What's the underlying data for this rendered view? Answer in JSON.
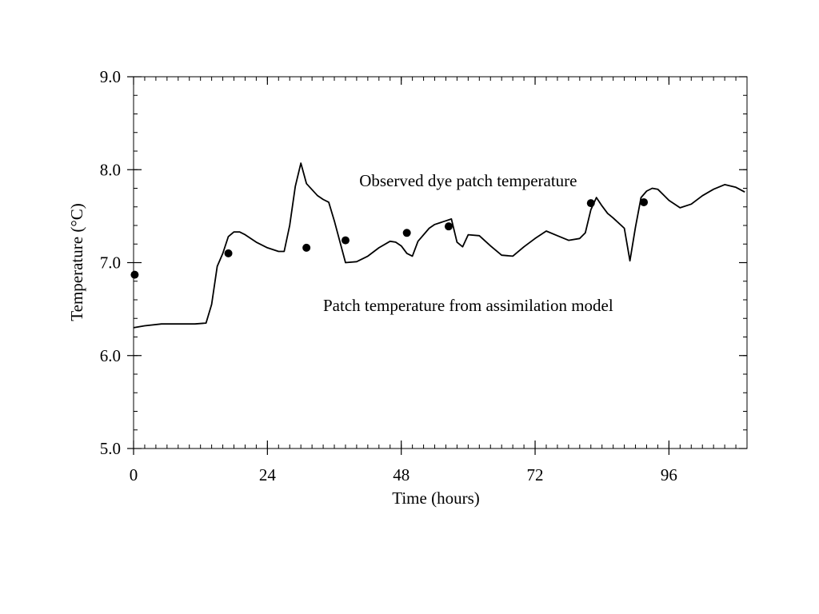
{
  "chart_data": {
    "type": "line",
    "xlabel": "Time (hours)",
    "ylabel": "Temperature (°C)",
    "xlim": [
      0,
      110
    ],
    "ylim": [
      5.0,
      9.0
    ],
    "x_ticks": [
      0,
      24,
      48,
      72,
      96
    ],
    "x_tick_labels": [
      "0",
      "24",
      "48",
      "72",
      "96"
    ],
    "y_ticks": [
      5.0,
      6.0,
      7.0,
      8.0,
      9.0
    ],
    "y_tick_labels": [
      "5.0",
      "6.0",
      "7.0",
      "8.0",
      "9.0"
    ],
    "x_minor_step": 2,
    "y_minor_step": 0.2,
    "grid": false,
    "series": [
      {
        "name": "Patch temperature from assimilation model",
        "kind": "line",
        "color": "#000000",
        "x": [
          0,
          2,
          5,
          8,
          11,
          13,
          14,
          15,
          16,
          17,
          18,
          19,
          20,
          22,
          24,
          26,
          27,
          28,
          29,
          30,
          31,
          33,
          34,
          35,
          36,
          38,
          40,
          42,
          44,
          46,
          47,
          48,
          49,
          50,
          51,
          53,
          54,
          55,
          55.5,
          56,
          57,
          58,
          59,
          60,
          62,
          64,
          66,
          68,
          70,
          72,
          74,
          76,
          78,
          80,
          81,
          82,
          83,
          84,
          85,
          86,
          88,
          89,
          90,
          91,
          92,
          93,
          94,
          95,
          96,
          98,
          100,
          102,
          104,
          106,
          108,
          109.6
        ],
        "y": [
          6.3,
          6.32,
          6.34,
          6.34,
          6.34,
          6.35,
          6.55,
          6.96,
          7.1,
          7.28,
          7.33,
          7.33,
          7.3,
          7.22,
          7.16,
          7.12,
          7.12,
          7.4,
          7.82,
          8.07,
          7.85,
          7.72,
          7.68,
          7.65,
          7.45,
          7.0,
          7.01,
          7.07,
          7.16,
          7.23,
          7.22,
          7.18,
          7.1,
          7.07,
          7.23,
          7.37,
          7.41,
          7.43,
          7.44,
          7.45,
          7.47,
          7.22,
          7.17,
          7.3,
          7.29,
          7.18,
          7.08,
          7.07,
          7.17,
          7.26,
          7.34,
          7.29,
          7.24,
          7.26,
          7.32,
          7.57,
          7.7,
          7.61,
          7.53,
          7.48,
          7.37,
          7.02,
          7.38,
          7.7,
          7.77,
          7.8,
          7.79,
          7.73,
          7.67,
          7.59,
          7.63,
          7.72,
          7.79,
          7.84,
          7.81,
          7.76
        ]
      },
      {
        "name": "Observed dye patch temperature",
        "kind": "scatter",
        "color": "#000000",
        "x": [
          0.2,
          17,
          31,
          38,
          49,
          56.5,
          82,
          91.5
        ],
        "y": [
          6.87,
          7.1,
          7.16,
          7.24,
          7.32,
          7.39,
          7.64,
          7.65
        ]
      }
    ],
    "annotations": [
      {
        "text": "Observed dye patch temperature",
        "x": 60,
        "y": 7.82
      },
      {
        "text": "Patch temperature from assimilation model",
        "x": 60,
        "y": 6.48
      }
    ]
  }
}
